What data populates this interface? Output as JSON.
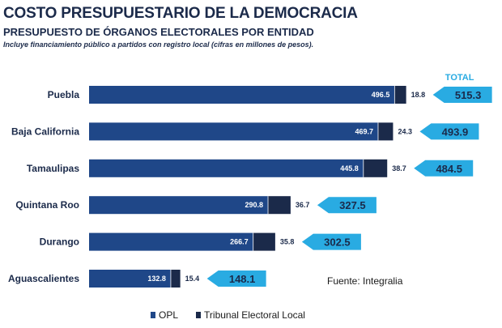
{
  "chart_data": {
    "type": "bar",
    "orientation": "horizontal",
    "stacked": true,
    "title": "COSTO PRESUPUESTARIO DE LA DEMOCRACIA",
    "subtitle": "PRESUPUESTO DE ÓRGANOS ELECTORALES POR ENTIDAD",
    "note": "Incluye financiamiento público a partidos con registro local (cifras en millones de pesos).",
    "source": "Fuente: Integralia",
    "total_header": "TOTAL",
    "categories": [
      "Puebla",
      "Baja California",
      "Tamaulipas",
      "Quintana Roo",
      "Durango",
      "Aguascalientes"
    ],
    "series": [
      {
        "name": "OPL",
        "values": [
          496.5,
          469.7,
          445.8,
          290.8,
          266.7,
          132.8
        ],
        "color": "#1f4788"
      },
      {
        "name": "Tribunal Electoral Local",
        "values": [
          18.8,
          24.3,
          38.7,
          36.7,
          35.8,
          15.4
        ],
        "color": "#1b2a4a"
      }
    ],
    "totals": [
      515.3,
      493.9,
      484.5,
      327.5,
      302.5,
      148.1
    ],
    "total_color": "#29abe2",
    "legend_position": "bottom",
    "grid": false
  }
}
